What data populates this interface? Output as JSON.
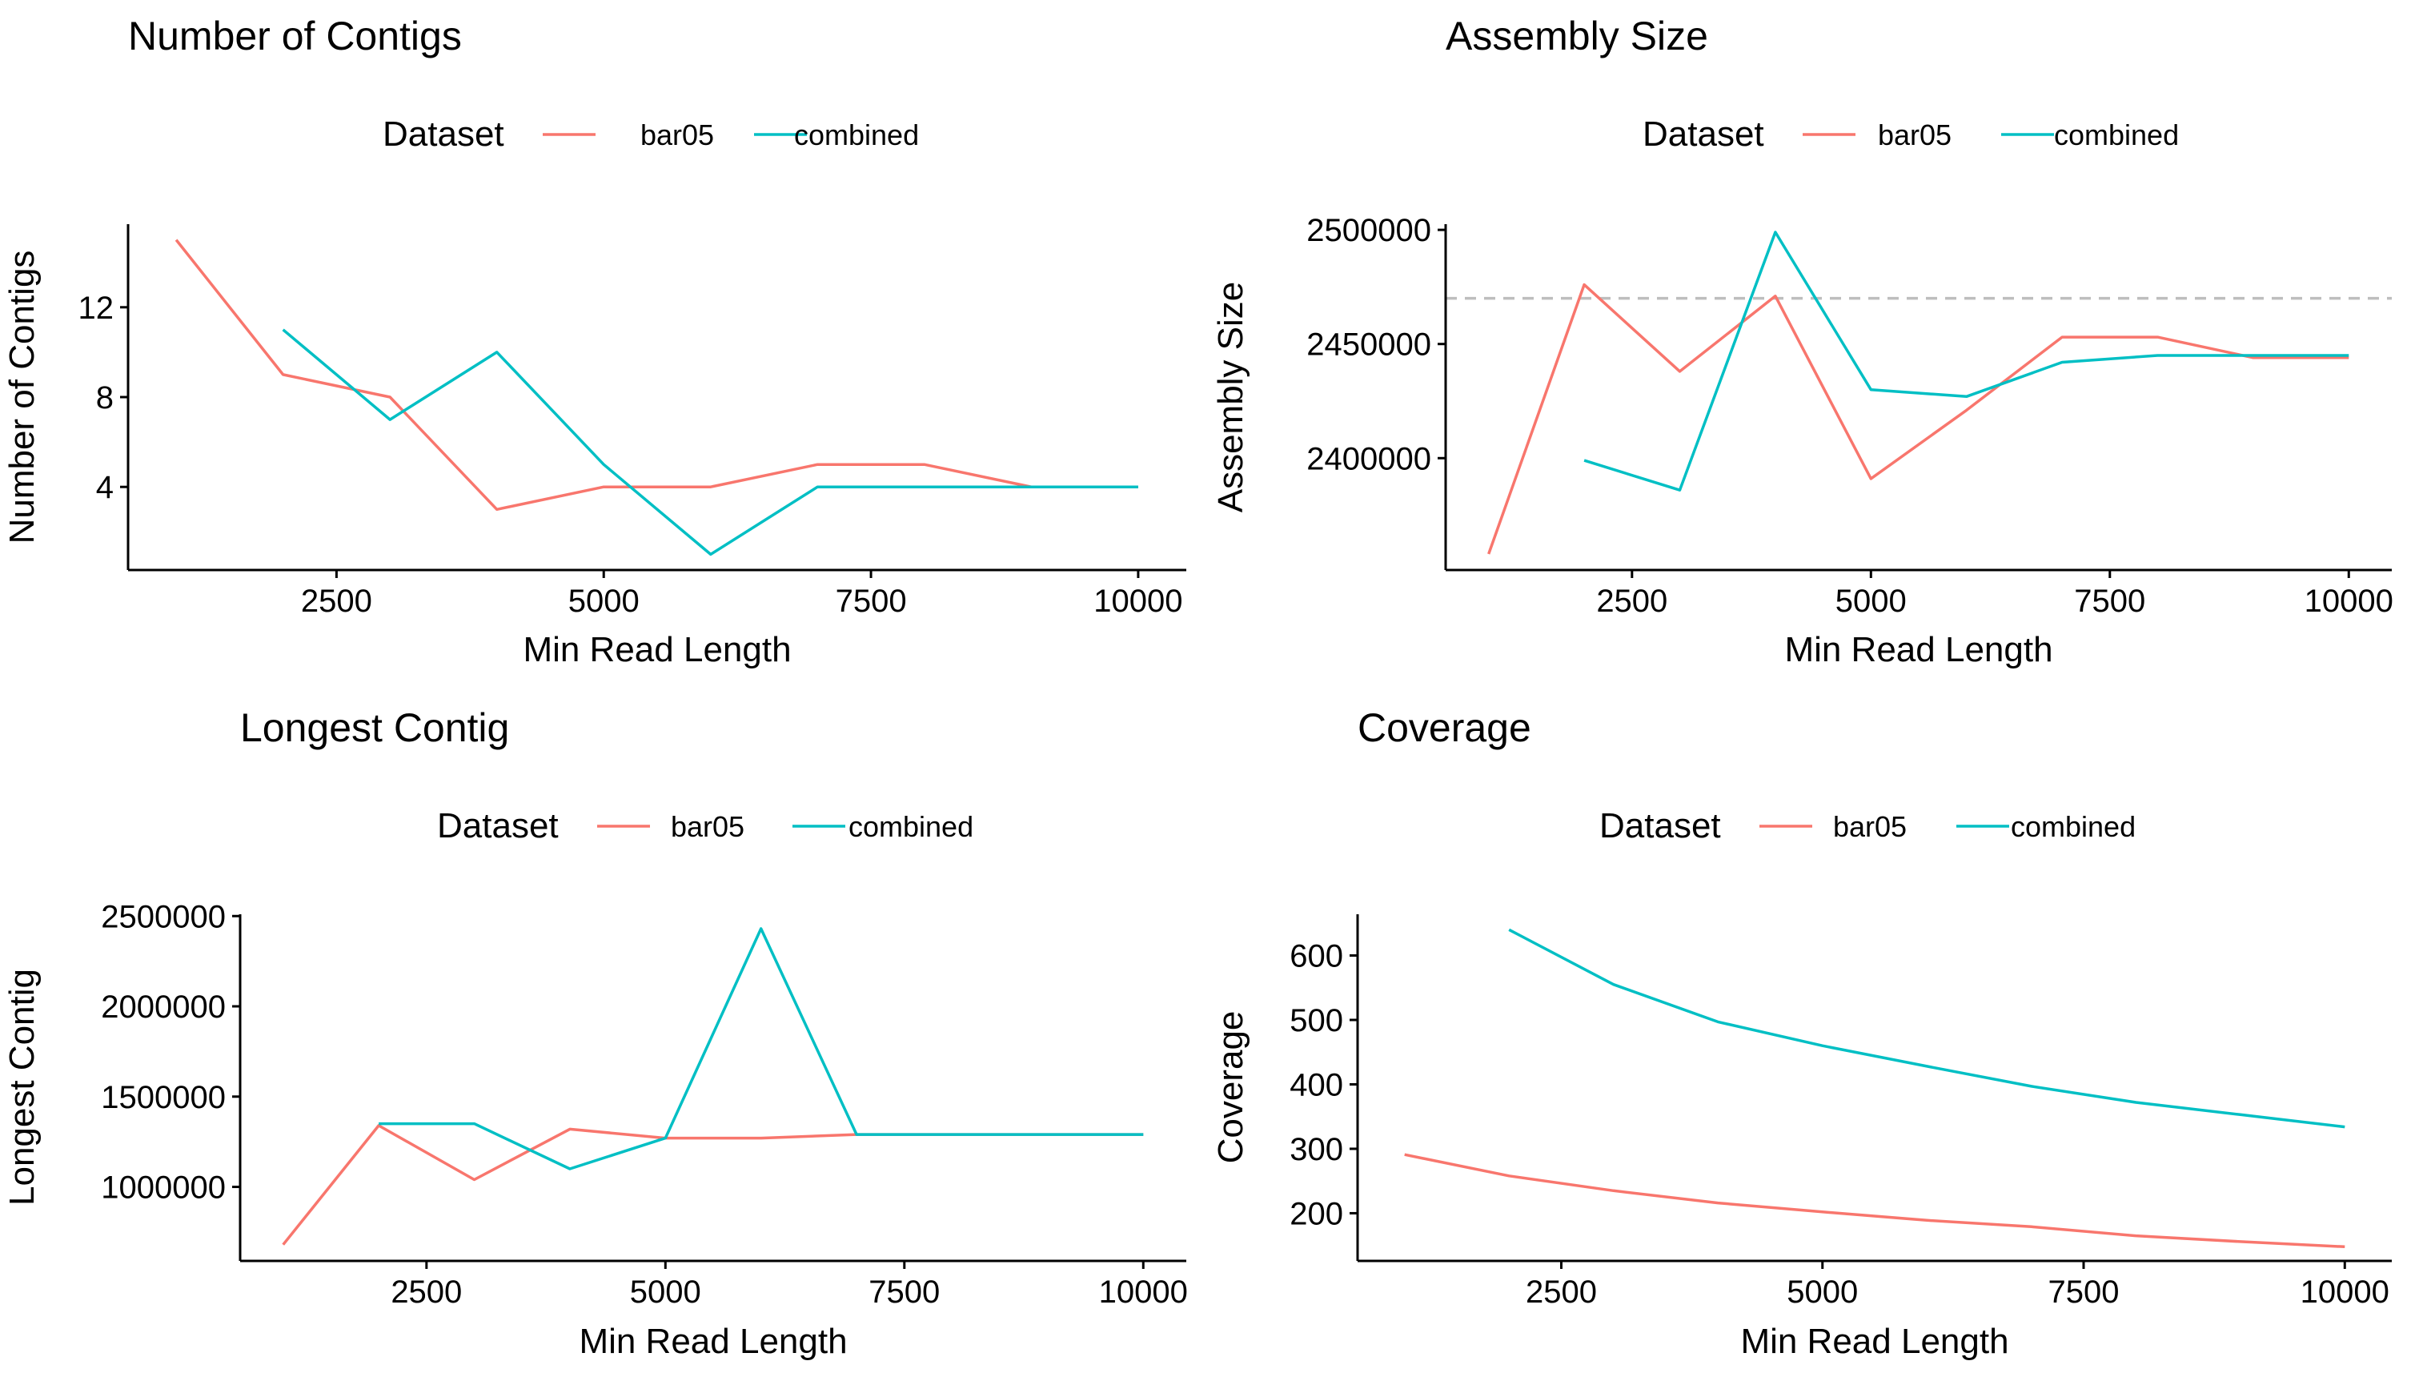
{
  "chart_data": [
    {
      "type": "line",
      "title": "Number of Contigs",
      "xlabel": "Min Read Length",
      "ylabel": "Number of Contigs",
      "legend_title": "Dataset",
      "legend_position": "top",
      "grid": false,
      "xlim": [
        550,
        10450
      ],
      "ylim": [
        0.3,
        15.7
      ],
      "x_ticks": [
        2500,
        5000,
        7500,
        10000
      ],
      "y_ticks": [
        4,
        8,
        12
      ],
      "series": [
        {
          "name": "bar05",
          "color": "#F8766D",
          "x": [
            1000,
            2000,
            3000,
            4000,
            5000,
            6000,
            7000,
            8000,
            9000,
            10000
          ],
          "y": [
            15,
            9,
            8,
            3,
            4,
            4,
            5,
            5,
            4,
            4
          ]
        },
        {
          "name": "combined",
          "color": "#00BFC4",
          "x": [
            2000,
            3000,
            4000,
            5000,
            6000,
            7000,
            8000,
            9000,
            10000
          ],
          "y": [
            11,
            7,
            10,
            5,
            1,
            4,
            4,
            4,
            4
          ]
        }
      ]
    },
    {
      "type": "line",
      "title": "Assembly Size",
      "xlabel": "Min Read Length",
      "ylabel": "Assembly Size",
      "legend_title": "Dataset",
      "legend_position": "top",
      "grid": false,
      "xlim": [
        550,
        10450
      ],
      "ylim": [
        2351000,
        2502500
      ],
      "x_ticks": [
        2500,
        5000,
        7500,
        10000
      ],
      "y_ticks": [
        2400000,
        2450000,
        2500000
      ],
      "reference_line": {
        "y": 2470000,
        "style": "dashed",
        "color": "#BEBEBE"
      },
      "series": [
        {
          "name": "bar05",
          "color": "#F8766D",
          "x": [
            1000,
            2000,
            3000,
            4000,
            5000,
            6000,
            7000,
            8000,
            9000,
            10000
          ],
          "y": [
            2358000,
            2476000,
            2438000,
            2471000,
            2391000,
            2421000,
            2453000,
            2453000,
            2444000,
            2444000
          ]
        },
        {
          "name": "combined",
          "color": "#00BFC4",
          "x": [
            2000,
            3000,
            4000,
            5000,
            6000,
            7000,
            8000,
            9000,
            10000
          ],
          "y": [
            2399000,
            2386000,
            2499000,
            2430000,
            2427000,
            2442000,
            2445000,
            2445000,
            2445000
          ]
        }
      ]
    },
    {
      "type": "line",
      "title": "Longest Contig",
      "xlabel": "Min Read Length",
      "ylabel": "Longest Contig",
      "legend_title": "Dataset",
      "legend_position": "top",
      "grid": false,
      "xlim": [
        550,
        10450
      ],
      "ylim": [
        590000,
        2510000
      ],
      "x_ticks": [
        2500,
        5000,
        7500,
        10000
      ],
      "y_ticks": [
        1000000,
        1500000,
        2000000,
        2500000
      ],
      "series": [
        {
          "name": "bar05",
          "color": "#F8766D",
          "x": [
            1000,
            2000,
            3000,
            4000,
            5000,
            6000,
            7000,
            8000,
            9000,
            10000
          ],
          "y": [
            680000,
            1340000,
            1040000,
            1320000,
            1270000,
            1270000,
            1290000,
            1290000,
            1290000,
            1290000
          ]
        },
        {
          "name": "combined",
          "color": "#00BFC4",
          "x": [
            2000,
            3000,
            4000,
            5000,
            6000,
            7000,
            8000,
            9000,
            10000
          ],
          "y": [
            1350000,
            1350000,
            1100000,
            1270000,
            2430000,
            1290000,
            1290000,
            1290000,
            1290000
          ]
        }
      ]
    },
    {
      "type": "line",
      "title": "Coverage",
      "xlabel": "Min Read Length",
      "ylabel": "Coverage",
      "legend_title": "Dataset",
      "legend_position": "top",
      "grid": false,
      "xlim": [
        550,
        10450
      ],
      "ylim": [
        126,
        664
      ],
      "x_ticks": [
        2500,
        5000,
        7500,
        10000
      ],
      "y_ticks": [
        200,
        300,
        400,
        500,
        600
      ],
      "series": [
        {
          "name": "bar05",
          "color": "#F8766D",
          "x": [
            1000,
            2000,
            3000,
            4000,
            5000,
            6000,
            7000,
            8000,
            9000,
            10000
          ],
          "y": [
            291,
            258,
            235,
            216,
            202,
            189,
            179,
            165,
            156,
            148
          ]
        },
        {
          "name": "combined",
          "color": "#00BFC4",
          "x": [
            2000,
            3000,
            4000,
            5000,
            6000,
            7000,
            8000,
            9000,
            10000
          ],
          "y": [
            640,
            555,
            497,
            460,
            428,
            397,
            372,
            353,
            334
          ]
        }
      ]
    }
  ]
}
